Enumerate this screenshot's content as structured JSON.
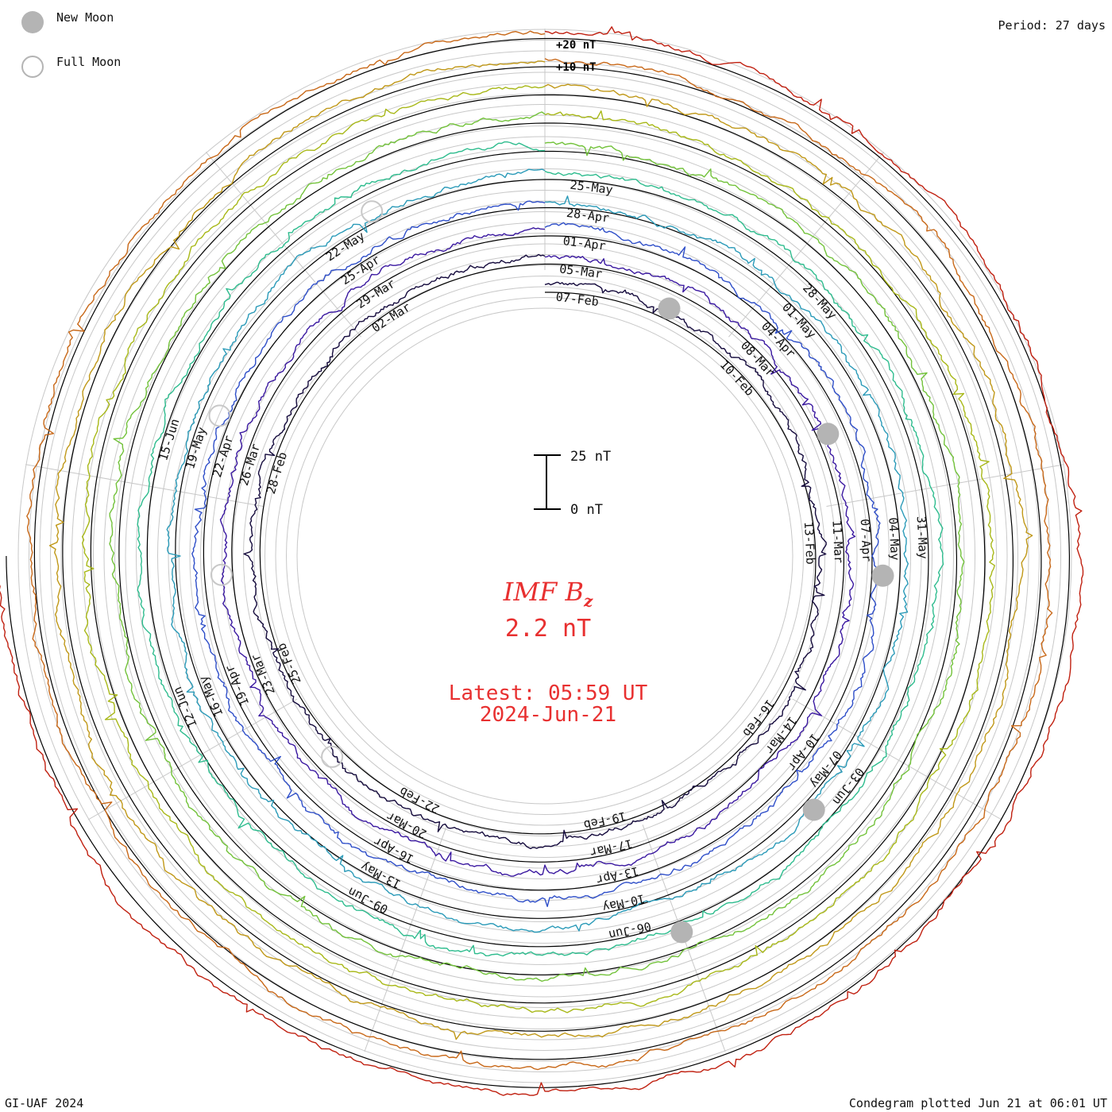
{
  "legend": {
    "new_moon_label": "New Moon",
    "full_moon_label": "Full Moon",
    "new_moon_color": "#b4b4b4",
    "full_moon_color": "#c8c8c8"
  },
  "period_label": "Period: 27 days",
  "footer": {
    "left": "GI-UAF 2024",
    "right": "Condegram plotted Jun 21 at 06:01 UT"
  },
  "scale": {
    "top_label": "25 nT",
    "bottom_label": "0 nT",
    "outer_ring_labels": [
      "+20 nT",
      "+10 nT"
    ]
  },
  "center": {
    "parameter_name": "IMF B",
    "parameter_subscript": "z",
    "current_value": "2.2 nT",
    "latest_line": "Latest: 05:59 UT",
    "date_line": "2024-Jun-21",
    "text_color": "#e83030"
  },
  "chart_data": {
    "type": "line",
    "chart_style": "condegram (spiral, one 27-day solar rotation per ring)",
    "period_days": 27,
    "units": "nT",
    "series_colors": [
      "#140a3c",
      "#3a18a0",
      "#2e4ec8",
      "#2a9ab8",
      "#2ebc8e",
      "#72c23a",
      "#a8b818",
      "#c09818",
      "#c86818",
      "#c02010"
    ],
    "baseline_value": 0,
    "ring_labels": [
      {
        "ring": 0,
        "labels": [
          "07-Feb",
          "10-Feb",
          "13-Feb",
          "16-Feb",
          "19-Feb",
          "22-Feb",
          "25-Feb",
          "28-Feb",
          "02-Mar"
        ]
      },
      {
        "ring": 1,
        "labels": [
          "05-Mar",
          "08-Mar",
          "11-Mar",
          "14-Mar",
          "17-Mar",
          "20-Mar",
          "23-Mar",
          "26-Mar",
          "29-Mar"
        ]
      },
      {
        "ring": 2,
        "labels": [
          "01-Apr",
          "04-Apr",
          "07-Apr",
          "10-Apr",
          "13-Apr",
          "16-Apr",
          "19-Apr",
          "22-Apr",
          "25-Apr"
        ]
      },
      {
        "ring": 3,
        "labels": [
          "28-Apr",
          "01-May",
          "04-May",
          "07-May",
          "10-May",
          "13-May",
          "16-May",
          "19-May",
          "22-May"
        ]
      },
      {
        "ring": 4,
        "labels": [
          "25-May",
          "28-May",
          "31-May",
          "03-Jun",
          "06-Jun",
          "09-Jun",
          "12-Jun",
          "15-Jun",
          ""
        ]
      }
    ],
    "new_moons": [
      "2024-02-09",
      "2024-03-10",
      "2024-04-08",
      "2024-05-08",
      "2024-06-06"
    ],
    "full_moons": [
      "2024-02-24",
      "2024-03-25",
      "2024-04-23",
      "2024-05-23"
    ],
    "latest_value": 2.2,
    "latest_time": "2024-06-21 05:59 UT"
  }
}
